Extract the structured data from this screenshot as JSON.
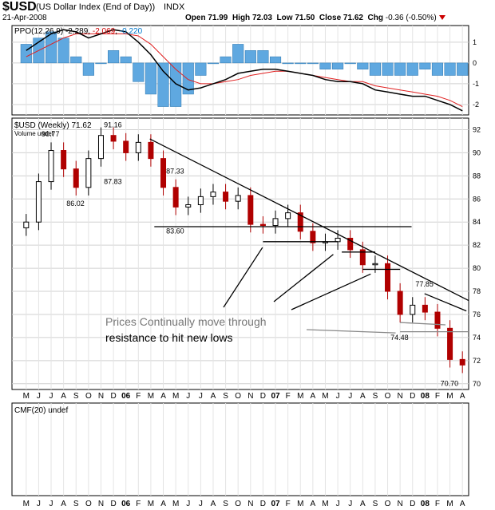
{
  "header": {
    "symbol": "$USD",
    "name": "(US Dollar Index (End of Day))",
    "exchange": "INDX",
    "date": "21-Apr-2008",
    "open_label": "Open",
    "open": "71.99",
    "high_label": "High",
    "high": "72.03",
    "low_label": "Low",
    "low": "71.50",
    "close_label": "Close",
    "close": "71.62",
    "chg_label": "Chg",
    "chg": "-0.36 (-0.50%)"
  },
  "ppo_panel": {
    "label": "PPO(12,26,9)",
    "v1": "-2.289",
    "v2": "-2.069",
    "v3": "-0.220",
    "y_ticks": [
      "1",
      "0",
      "-1",
      "-2"
    ]
  },
  "price_panel": {
    "label": "$USD (Weekly) 71.62",
    "volume_label": "Volume undef",
    "y_ticks": [
      "92",
      "90",
      "88",
      "86",
      "84",
      "82",
      "80",
      "78",
      "76",
      "74",
      "72",
      "70"
    ],
    "peak_labels": [
      "90.77",
      "91.16",
      "86.02",
      "87.83",
      "87.33",
      "83.60",
      "77.85",
      "74.48",
      "70.70"
    ],
    "annotation_line1": "Prices Continually move through",
    "annotation_line2": "resistance to hit new lows"
  },
  "cmf_panel": {
    "label": "CMF(20) undef"
  },
  "x_axis": {
    "labels": [
      "M",
      "J",
      "J",
      "A",
      "S",
      "O",
      "N",
      "D",
      "06",
      "F",
      "M",
      "A",
      "M",
      "J",
      "J",
      "A",
      "S",
      "O",
      "N",
      "D",
      "07",
      "F",
      "M",
      "A",
      "M",
      "J",
      "J",
      "A",
      "S",
      "O",
      "N",
      "D",
      "08",
      "F",
      "M",
      "A"
    ]
  },
  "chart_data": [
    {
      "type": "line",
      "panel": "PPO(12,26,9)",
      "series": [
        {
          "name": "PPO",
          "values": [
            0.6,
            1.0,
            1.4,
            1.6,
            1.5,
            1.2,
            1.4,
            1.6,
            1.5,
            1.0,
            0.4,
            -0.4,
            -1.0,
            -1.3,
            -1.2,
            -1.0,
            -0.8,
            -0.5,
            -0.4,
            -0.3,
            -0.3,
            -0.4,
            -0.5,
            -0.6,
            -0.8,
            -0.9,
            -0.9,
            -1.0,
            -1.3,
            -1.4,
            -1.5,
            -1.6,
            -1.6,
            -1.8,
            -2.0,
            -2.3
          ]
        },
        {
          "name": "Signal",
          "values": [
            0.3,
            0.6,
            0.9,
            1.2,
            1.4,
            1.4,
            1.4,
            1.4,
            1.4,
            1.3,
            0.9,
            0.3,
            -0.3,
            -0.8,
            -1.0,
            -1.0,
            -0.9,
            -0.8,
            -0.6,
            -0.5,
            -0.4,
            -0.4,
            -0.5,
            -0.6,
            -0.7,
            -0.8,
            -0.9,
            -0.9,
            -1.1,
            -1.2,
            -1.3,
            -1.4,
            -1.5,
            -1.6,
            -1.8,
            -2.1
          ]
        }
      ],
      "ylim": [
        -2.5,
        1.8
      ]
    },
    {
      "type": "line",
      "panel": "$USD (Weekly)",
      "x": [
        "M",
        "J",
        "J",
        "A",
        "S",
        "O",
        "N",
        "D",
        "06",
        "F",
        "M",
        "A",
        "M",
        "J",
        "J",
        "A",
        "S",
        "O",
        "N",
        "D",
        "07",
        "F",
        "M",
        "A",
        "M",
        "J",
        "J",
        "A",
        "S",
        "O",
        "N",
        "D",
        "08",
        "F",
        "M",
        "A"
      ],
      "series": [
        {
          "name": "$USD",
          "values": [
            84.0,
            87.5,
            90.2,
            88.6,
            87.0,
            89.5,
            91.5,
            91.0,
            90.0,
            90.9,
            89.5,
            87.0,
            85.3,
            85.5,
            86.2,
            86.6,
            85.8,
            86.3,
            83.8,
            83.7,
            84.3,
            84.8,
            83.2,
            82.2,
            82.3,
            82.6,
            81.6,
            80.3,
            80.4,
            78.0,
            76.0,
            76.8,
            76.2,
            74.8,
            72.1,
            71.62
          ]
        }
      ],
      "ylim": [
        69.5,
        93
      ]
    }
  ]
}
